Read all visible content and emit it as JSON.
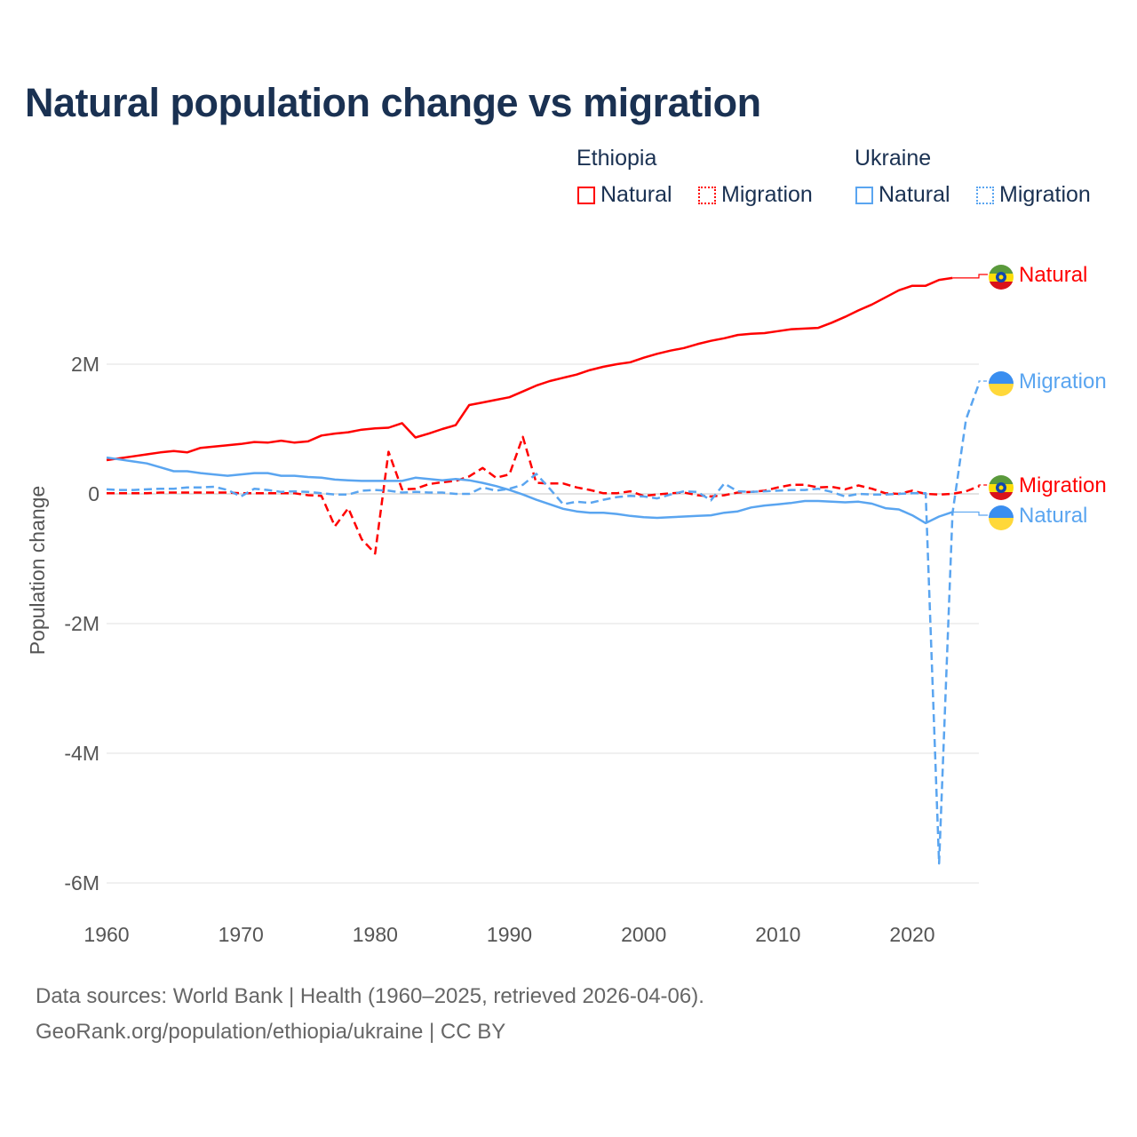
{
  "chart_data": {
    "type": "line",
    "title": "Natural population change vs migration",
    "xlabel": "",
    "ylabel": "Population change",
    "xlim": [
      1960,
      2025
    ],
    "ylim": [
      -6,
      3.5
    ],
    "y_unit": "millions",
    "grid": true,
    "x_ticks": [
      1960,
      1970,
      1980,
      1990,
      2000,
      2010,
      2020
    ],
    "x_tick_labels": [
      "1960",
      "1970",
      "1980",
      "1990",
      "2000",
      "2010",
      "2020"
    ],
    "y_ticks": [
      2,
      0,
      -2,
      -4,
      -6
    ],
    "y_tick_labels": [
      "2M",
      "0",
      "-2M",
      "-4M",
      "-6M"
    ],
    "legend": {
      "placement": "top-right",
      "groups": [
        {
          "country": "Ethiopia",
          "items": [
            "Natural",
            "Migration"
          ]
        },
        {
          "country": "Ukraine",
          "items": [
            "Natural",
            "Migration"
          ]
        }
      ]
    },
    "x_start": 1960,
    "series": [
      {
        "name": "Ethiopia Natural",
        "country": "Ethiopia",
        "kind": "Natural",
        "color": "#ff0000",
        "dashed": false,
        "end_label": "Natural",
        "flag": "ethiopia",
        "values": [
          0.52,
          0.55,
          0.58,
          0.61,
          0.64,
          0.66,
          0.64,
          0.71,
          0.73,
          0.75,
          0.77,
          0.8,
          0.79,
          0.82,
          0.79,
          0.81,
          0.9,
          0.93,
          0.95,
          0.99,
          1.01,
          1.02,
          1.09,
          0.87,
          0.93,
          1.0,
          1.06,
          1.37,
          1.41,
          1.45,
          1.49,
          1.58,
          1.67,
          1.74,
          1.79,
          1.84,
          1.91,
          1.96,
          2.0,
          2.03,
          2.1,
          2.16,
          2.21,
          2.25,
          2.31,
          2.36,
          2.4,
          2.45,
          2.47,
          2.48,
          2.51,
          2.54,
          2.55,
          2.56,
          2.64,
          2.73,
          2.83,
          2.92,
          3.03,
          3.14,
          3.21,
          3.21,
          3.3,
          3.33,
          null,
          null
        ]
      },
      {
        "name": "Ethiopia Migration",
        "country": "Ethiopia",
        "kind": "Migration",
        "color": "#ff0000",
        "dashed": true,
        "end_label": "Migration",
        "flag": "ethiopia",
        "values": [
          0.01,
          0.01,
          0.01,
          0.01,
          0.02,
          0.02,
          0.02,
          0.02,
          0.02,
          0.02,
          0.01,
          0.01,
          0.01,
          0.01,
          0.01,
          -0.02,
          -0.03,
          -0.5,
          -0.22,
          -0.7,
          -0.92,
          0.65,
          0.07,
          0.08,
          0.15,
          0.18,
          0.2,
          0.27,
          0.4,
          0.25,
          0.3,
          0.88,
          0.17,
          0.16,
          0.16,
          0.1,
          0.06,
          0.01,
          0.01,
          0.04,
          -0.03,
          -0.01,
          0.01,
          0.02,
          -0.02,
          -0.04,
          -0.02,
          0.02,
          0.03,
          0.05,
          0.1,
          0.14,
          0.14,
          0.1,
          0.11,
          0.07,
          0.13,
          0.08,
          0.01,
          0.0,
          0.05,
          0.0,
          -0.01,
          0.0,
          0.04,
          0.12
        ]
      },
      {
        "name": "Ukraine Natural",
        "country": "Ukraine",
        "kind": "Natural",
        "color": "#5aa5f0",
        "dashed": false,
        "end_label": "Natural",
        "flag": "ukraine",
        "values": [
          0.56,
          0.53,
          0.5,
          0.47,
          0.41,
          0.35,
          0.35,
          0.32,
          0.3,
          0.28,
          0.3,
          0.32,
          0.32,
          0.28,
          0.28,
          0.26,
          0.25,
          0.22,
          0.21,
          0.2,
          0.2,
          0.2,
          0.2,
          0.25,
          0.23,
          0.21,
          0.23,
          0.21,
          0.17,
          0.12,
          0.06,
          -0.01,
          -0.09,
          -0.16,
          -0.23,
          -0.27,
          -0.29,
          -0.29,
          -0.31,
          -0.34,
          -0.36,
          -0.37,
          -0.36,
          -0.35,
          -0.34,
          -0.33,
          -0.29,
          -0.27,
          -0.21,
          -0.18,
          -0.16,
          -0.14,
          -0.11,
          -0.11,
          -0.12,
          -0.13,
          -0.12,
          -0.15,
          -0.22,
          -0.24,
          -0.33,
          -0.45,
          -0.35,
          -0.28,
          null,
          null
        ]
      },
      {
        "name": "Ukraine Migration",
        "country": "Ukraine",
        "kind": "Migration",
        "color": "#5aa5f0",
        "dashed": true,
        "end_label": "Migration",
        "flag": "ukraine",
        "values": [
          0.07,
          0.06,
          0.06,
          0.07,
          0.08,
          0.08,
          0.1,
          0.1,
          0.11,
          0.06,
          -0.04,
          0.08,
          0.06,
          0.03,
          0.04,
          0.03,
          0.01,
          -0.01,
          -0.01,
          0.05,
          0.06,
          0.05,
          0.02,
          0.03,
          0.02,
          0.02,
          0.0,
          0.0,
          0.1,
          0.05,
          0.08,
          0.14,
          0.31,
          0.08,
          -0.16,
          -0.12,
          -0.14,
          -0.09,
          -0.05,
          -0.03,
          -0.04,
          -0.07,
          -0.01,
          0.04,
          0.03,
          -0.1,
          0.16,
          0.04,
          0.03,
          0.04,
          0.05,
          0.06,
          0.06,
          0.08,
          0.03,
          -0.04,
          0.0,
          -0.01,
          -0.01,
          0.0,
          0.01,
          0.01,
          -5.7,
          -0.3,
          1.15,
          1.72
        ]
      }
    ]
  },
  "legend": {
    "ethiopia": "Ethiopia",
    "ukraine": "Ukraine",
    "natural": "Natural",
    "migration": "Migration"
  },
  "footer": {
    "line1": "Data sources: World Bank | Health (1960–2025, retrieved 2026-04-06).",
    "line2": "GeoRank.org/population/ethiopia/ukraine | CC BY"
  }
}
